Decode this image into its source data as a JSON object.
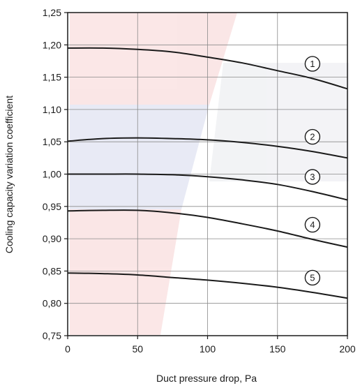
{
  "chart_data": {
    "type": "line",
    "title": "",
    "xlabel": "Duct pressure drop, Pa",
    "ylabel": "Cooling capacity variation coefficient",
    "xlim": [
      0,
      200
    ],
    "ylim": [
      0.75,
      1.25
    ],
    "xticks": [
      "0",
      "50",
      "100",
      "150",
      "200"
    ],
    "yticks": [
      "0,75",
      "0,80",
      "0,85",
      "0,90",
      "0,95",
      "1,00",
      "1,05",
      "1,10",
      "1,15",
      "1,20",
      "1,25"
    ],
    "grid": true,
    "x": [
      0,
      25,
      50,
      75,
      100,
      125,
      150,
      175,
      200
    ],
    "series": [
      {
        "label": "1",
        "values": [
          1.195,
          1.195,
          1.193,
          1.189,
          1.181,
          1.172,
          1.16,
          1.148,
          1.132
        ]
      },
      {
        "label": "2",
        "values": [
          1.051,
          1.055,
          1.056,
          1.055,
          1.053,
          1.049,
          1.043,
          1.035,
          1.025
        ]
      },
      {
        "label": "3",
        "values": [
          1.0,
          1.0,
          1.0,
          0.999,
          0.996,
          0.991,
          0.984,
          0.973,
          0.96
        ]
      },
      {
        "label": "4",
        "values": [
          0.943,
          0.944,
          0.944,
          0.94,
          0.933,
          0.923,
          0.912,
          0.899,
          0.887
        ]
      },
      {
        "label": "5",
        "values": [
          0.847,
          0.846,
          0.844,
          0.84,
          0.836,
          0.831,
          0.825,
          0.817,
          0.808
        ]
      }
    ],
    "curve_label_x": [
      175,
      175,
      175,
      175,
      175
    ],
    "colors": {
      "line": "#1a1a1a",
      "grid": "#8a8a8a",
      "axis": "#1a1a1a"
    }
  }
}
